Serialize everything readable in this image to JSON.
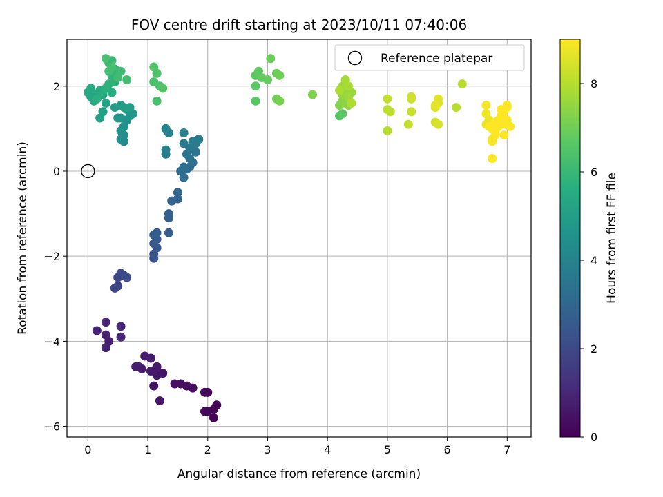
{
  "chart_data": {
    "type": "scatter",
    "title": "FOV centre drift starting at 2023/10/11 07:40:06",
    "xlabel": "Angular distance from reference (arcmin)",
    "ylabel": "Rotation from reference (arcmin)",
    "xlim": [
      -0.35,
      7.4
    ],
    "ylim": [
      -6.25,
      3.1
    ],
    "xticks": [
      0,
      1,
      2,
      3,
      4,
      5,
      6,
      7
    ],
    "yticks": [
      -6,
      -4,
      -2,
      0,
      2
    ],
    "ytick_labels": [
      "−6",
      "−4",
      "−2",
      "0",
      "2"
    ],
    "grid": true,
    "colorbar": {
      "label": "Hours from first FF file",
      "colormap": "viridis",
      "range": [
        0,
        9
      ],
      "ticks": [
        0,
        2,
        4,
        6,
        8
      ]
    },
    "legend": {
      "location": "top-right",
      "entries": [
        {
          "label": "Reference platepar",
          "marker": "open-circle",
          "x": 0,
          "y": 0
        }
      ]
    },
    "series": [
      {
        "marker": "filled-circle",
        "color_by": "Hours from first FF file",
        "points": [
          [
            2.1,
            -5.8,
            0.05
          ],
          [
            2.0,
            -5.65,
            0.08
          ],
          [
            2.15,
            -5.5,
            0.1
          ],
          [
            2.1,
            -5.6,
            0.12
          ],
          [
            1.95,
            -5.65,
            0.15
          ],
          [
            2.0,
            -5.2,
            0.18
          ],
          [
            1.95,
            -5.2,
            0.2
          ],
          [
            1.75,
            -5.1,
            0.25
          ],
          [
            1.65,
            -5.05,
            0.3
          ],
          [
            1.55,
            -5.0,
            0.35
          ],
          [
            1.45,
            -5.0,
            0.4
          ],
          [
            1.25,
            -4.75,
            0.45
          ],
          [
            1.2,
            -5.4,
            0.5
          ],
          [
            1.1,
            -5.05,
            0.52
          ],
          [
            1.15,
            -4.8,
            0.55
          ],
          [
            1.15,
            -4.6,
            0.6
          ],
          [
            1.05,
            -4.7,
            0.62
          ],
          [
            0.95,
            -4.35,
            0.65
          ],
          [
            1.05,
            -4.4,
            0.68
          ],
          [
            0.9,
            -4.65,
            0.7
          ],
          [
            0.85,
            -4.6,
            0.72
          ],
          [
            0.8,
            -4.6,
            0.75
          ],
          [
            0.35,
            -4.0,
            0.8
          ],
          [
            0.3,
            -3.85,
            0.85
          ],
          [
            0.3,
            -4.15,
            0.88
          ],
          [
            0.15,
            -3.75,
            0.9
          ],
          [
            0.3,
            -3.55,
            0.95
          ],
          [
            0.55,
            -3.65,
            1.0
          ],
          [
            0.55,
            -3.9,
            1.05
          ],
          [
            0.5,
            -2.7,
            1.8
          ],
          [
            0.45,
            -2.75,
            1.85
          ],
          [
            0.5,
            -2.5,
            1.9
          ],
          [
            0.6,
            -2.45,
            1.95
          ],
          [
            0.55,
            -2.4,
            2.0
          ],
          [
            0.65,
            -2.5,
            2.05
          ],
          [
            1.1,
            -2.05,
            2.3
          ],
          [
            1.1,
            -1.95,
            2.35
          ],
          [
            1.15,
            -1.8,
            2.4
          ],
          [
            1.1,
            -1.7,
            2.45
          ],
          [
            1.15,
            -1.6,
            2.5
          ],
          [
            1.1,
            -1.5,
            2.55
          ],
          [
            1.15,
            -1.45,
            2.6
          ],
          [
            1.35,
            -1.45,
            2.65
          ],
          [
            1.35,
            -1.1,
            2.7
          ],
          [
            1.35,
            -1.0,
            2.75
          ],
          [
            1.4,
            -0.7,
            2.85
          ],
          [
            1.5,
            -0.65,
            2.9
          ],
          [
            1.5,
            -0.5,
            2.95
          ],
          [
            1.55,
            0.0,
            3.1
          ],
          [
            1.6,
            -0.15,
            3.15
          ],
          [
            1.65,
            0.05,
            3.2
          ],
          [
            1.7,
            0.1,
            3.25
          ],
          [
            1.6,
            0.1,
            3.3
          ],
          [
            1.75,
            0.2,
            3.35
          ],
          [
            1.7,
            0.3,
            3.4
          ],
          [
            1.65,
            0.4,
            3.45
          ],
          [
            1.8,
            0.45,
            3.5
          ],
          [
            1.7,
            0.55,
            3.55
          ],
          [
            1.6,
            0.65,
            3.6
          ],
          [
            1.75,
            0.7,
            3.65
          ],
          [
            1.8,
            0.65,
            3.7
          ],
          [
            1.85,
            0.75,
            3.75
          ],
          [
            1.6,
            0.9,
            3.8
          ],
          [
            1.3,
            0.4,
            3.85
          ],
          [
            1.3,
            0.5,
            3.9
          ],
          [
            1.35,
            0.9,
            3.95
          ],
          [
            1.3,
            1.0,
            4.0
          ],
          [
            0.6,
            0.7,
            4.3
          ],
          [
            0.55,
            0.75,
            4.35
          ],
          [
            0.6,
            0.85,
            4.4
          ],
          [
            0.55,
            0.95,
            4.45
          ],
          [
            0.6,
            1.05,
            4.5
          ],
          [
            0.65,
            1.2,
            4.55
          ],
          [
            0.55,
            1.25,
            4.6
          ],
          [
            0.7,
            1.3,
            4.65
          ],
          [
            0.75,
            1.35,
            4.7
          ],
          [
            0.5,
            1.25,
            4.75
          ],
          [
            0.65,
            1.45,
            4.8
          ],
          [
            0.55,
            1.55,
            4.85
          ],
          [
            0.45,
            1.5,
            4.9
          ],
          [
            0.6,
            1.5,
            4.95
          ],
          [
            0.7,
            1.5,
            5.0
          ],
          [
            0.2,
            1.25,
            5.1
          ],
          [
            0.25,
            1.4,
            5.15
          ],
          [
            0.3,
            1.6,
            5.2
          ],
          [
            0.1,
            1.65,
            5.25
          ],
          [
            0.05,
            1.75,
            5.3
          ],
          [
            0.15,
            1.8,
            5.35
          ],
          [
            0.0,
            1.85,
            5.4
          ],
          [
            0.05,
            1.95,
            5.45
          ],
          [
            0.25,
            1.8,
            5.5
          ],
          [
            0.4,
            1.85,
            5.55
          ],
          [
            0.2,
            1.9,
            5.6
          ],
          [
            0.15,
            1.7,
            5.65
          ],
          [
            0.3,
            1.95,
            5.7
          ],
          [
            0.35,
            2.05,
            5.75
          ],
          [
            0.45,
            2.1,
            5.8
          ],
          [
            0.4,
            2.25,
            5.85
          ],
          [
            0.5,
            2.3,
            5.9
          ],
          [
            0.45,
            2.4,
            5.95
          ],
          [
            0.35,
            2.55,
            6.0
          ],
          [
            0.4,
            2.6,
            6.05
          ],
          [
            0.55,
            2.35,
            6.1
          ],
          [
            0.5,
            2.2,
            6.15
          ],
          [
            0.35,
            2.35,
            6.2
          ],
          [
            0.4,
            2.45,
            6.25
          ],
          [
            0.3,
            2.65,
            6.3
          ],
          [
            0.65,
            2.15,
            6.2
          ],
          [
            1.15,
            1.65,
            6.3
          ],
          [
            1.1,
            2.1,
            6.35
          ],
          [
            1.2,
            2.0,
            6.4
          ],
          [
            1.15,
            2.3,
            6.45
          ],
          [
            1.1,
            2.45,
            6.5
          ],
          [
            1.25,
            1.95,
            6.55
          ],
          [
            2.8,
            1.65,
            6.6
          ],
          [
            2.8,
            2.0,
            6.65
          ],
          [
            2.8,
            2.25,
            6.7
          ],
          [
            2.85,
            2.35,
            6.75
          ],
          [
            2.9,
            2.2,
            6.8
          ],
          [
            3.0,
            2.15,
            6.85
          ],
          [
            3.05,
            2.65,
            6.9
          ],
          [
            3.15,
            2.3,
            6.95
          ],
          [
            3.2,
            2.25,
            7.0
          ],
          [
            3.15,
            1.7,
            7.05
          ],
          [
            3.2,
            1.65,
            7.1
          ],
          [
            3.75,
            1.8,
            7.2
          ],
          [
            4.2,
            1.3,
            6.6
          ],
          [
            4.25,
            1.35,
            6.65
          ],
          [
            4.2,
            1.55,
            7.3
          ],
          [
            4.25,
            1.65,
            7.35
          ],
          [
            4.3,
            1.6,
            7.4
          ],
          [
            4.35,
            1.55,
            7.45
          ],
          [
            4.25,
            1.8,
            7.5
          ],
          [
            4.3,
            1.85,
            7.55
          ],
          [
            4.4,
            1.85,
            7.6
          ],
          [
            4.35,
            1.75,
            7.65
          ],
          [
            4.25,
            2.0,
            7.7
          ],
          [
            4.3,
            2.15,
            7.75
          ],
          [
            4.35,
            2.0,
            7.8
          ],
          [
            4.2,
            1.9,
            7.85
          ],
          [
            4.4,
            1.6,
            7.9
          ],
          [
            5.0,
            0.95,
            8.0
          ],
          [
            5.0,
            1.45,
            8.05
          ],
          [
            5.05,
            1.4,
            8.1
          ],
          [
            5.0,
            1.7,
            8.15
          ],
          [
            5.35,
            1.1,
            8.2
          ],
          [
            5.4,
            1.4,
            8.25
          ],
          [
            5.4,
            1.7,
            8.3
          ],
          [
            5.4,
            1.75,
            8.35
          ],
          [
            5.8,
            1.15,
            8.4
          ],
          [
            5.85,
            1.1,
            8.45
          ],
          [
            5.8,
            1.5,
            8.5
          ],
          [
            5.85,
            1.6,
            8.55
          ],
          [
            5.85,
            1.7,
            8.6
          ],
          [
            5.8,
            1.55,
            8.65
          ],
          [
            6.15,
            1.5,
            8.0
          ],
          [
            6.25,
            2.05,
            8.0
          ],
          [
            6.65,
            1.1,
            8.7
          ],
          [
            6.7,
            1.2,
            8.75
          ],
          [
            6.65,
            1.35,
            8.8
          ],
          [
            6.65,
            1.55,
            8.85
          ],
          [
            6.75,
            0.7,
            8.9
          ],
          [
            6.75,
            0.75,
            8.92
          ],
          [
            6.8,
            0.85,
            8.94
          ],
          [
            6.8,
            0.95,
            8.96
          ],
          [
            6.8,
            1.0,
            8.97
          ],
          [
            6.85,
            1.05,
            8.98
          ],
          [
            6.9,
            1.1,
            8.99
          ],
          [
            6.85,
            1.2,
            9.0
          ],
          [
            6.9,
            1.3,
            9.0
          ],
          [
            6.95,
            1.1,
            9.0
          ],
          [
            7.0,
            1.2,
            9.0
          ],
          [
            6.95,
            1.4,
            9.0
          ],
          [
            6.9,
            1.45,
            9.0
          ],
          [
            7.0,
            1.5,
            9.0
          ],
          [
            7.05,
            1.05,
            9.0
          ],
          [
            6.95,
            0.85,
            9.0
          ],
          [
            6.75,
            0.3,
            9.0
          ],
          [
            7.0,
            1.55,
            9.0
          ],
          [
            6.75,
            1.0,
            9.0
          ],
          [
            6.8,
            1.15,
            9.0
          ],
          [
            6.7,
            1.05,
            9.0
          ]
        ]
      }
    ]
  }
}
